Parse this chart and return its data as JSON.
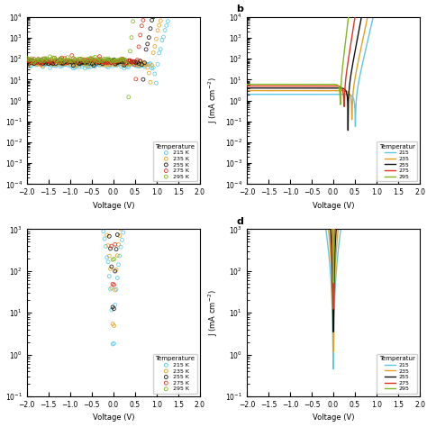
{
  "temps": [
    215,
    235,
    255,
    275,
    295
  ],
  "colors_a": [
    "#5BC8E8",
    "#E8A020",
    "#111111",
    "#E83020",
    "#80B820"
  ],
  "colors_b": [
    "#5BC8E8",
    "#E8A020",
    "#111111",
    "#E83020",
    "#80B820"
  ],
  "colors_c": [
    "#5BC8E8",
    "#E8A020",
    "#111111",
    "#E83020",
    "#80B820"
  ],
  "colors_d": [
    "#5BC8E8",
    "#E8A020",
    "#111111",
    "#E83020",
    "#80B820"
  ],
  "n_points": 500,
  "n_scatter": 150
}
